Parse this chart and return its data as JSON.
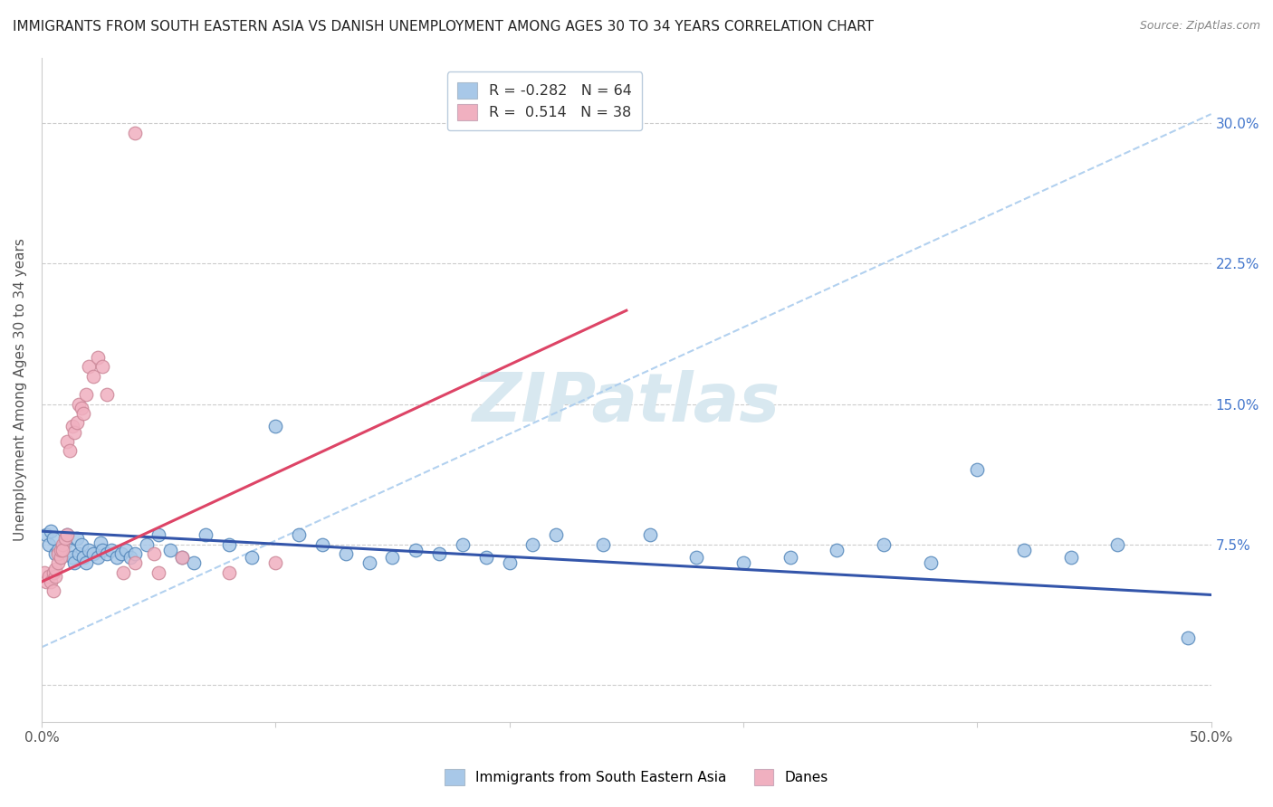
{
  "title": "IMMIGRANTS FROM SOUTH EASTERN ASIA VS DANISH UNEMPLOYMENT AMONG AGES 30 TO 34 YEARS CORRELATION CHART",
  "source": "Source: ZipAtlas.com",
  "ylabel": "Unemployment Among Ages 30 to 34 years",
  "xlim": [
    0.0,
    0.5
  ],
  "ylim": [
    -0.02,
    0.335
  ],
  "xticks": [
    0.0,
    0.1,
    0.2,
    0.3,
    0.4,
    0.5
  ],
  "xticklabels": [
    "0.0%",
    "",
    "",
    "",
    "",
    "50.0%"
  ],
  "yticks_right": [
    0.0,
    0.075,
    0.15,
    0.225,
    0.3
  ],
  "yticklabels_right": [
    "",
    "7.5%",
    "15.0%",
    "22.5%",
    "30.0%"
  ],
  "legend_r_blue": "-0.282",
  "legend_n_blue": "64",
  "legend_r_pink": "0.514",
  "legend_n_pink": "38",
  "blue_scatter_color": "#a8c8e8",
  "blue_edge_color": "#5588bb",
  "pink_scatter_color": "#f0b0c0",
  "pink_edge_color": "#cc8899",
  "blue_line_color": "#3355aa",
  "pink_line_color": "#dd4466",
  "dash_line_color": "#aaccee",
  "background_color": "#ffffff",
  "grid_color": "#cccccc",
  "watermark_color": "#d8e8f0",
  "blue_scatter_x": [
    0.002,
    0.003,
    0.004,
    0.005,
    0.006,
    0.007,
    0.008,
    0.009,
    0.01,
    0.011,
    0.012,
    0.013,
    0.014,
    0.015,
    0.016,
    0.017,
    0.018,
    0.019,
    0.02,
    0.022,
    0.024,
    0.025,
    0.026,
    0.028,
    0.03,
    0.032,
    0.034,
    0.036,
    0.038,
    0.04,
    0.045,
    0.05,
    0.055,
    0.06,
    0.065,
    0.07,
    0.08,
    0.09,
    0.1,
    0.11,
    0.12,
    0.13,
    0.14,
    0.15,
    0.16,
    0.17,
    0.18,
    0.19,
    0.2,
    0.21,
    0.22,
    0.24,
    0.26,
    0.28,
    0.3,
    0.32,
    0.34,
    0.36,
    0.38,
    0.4,
    0.42,
    0.44,
    0.46,
    0.49
  ],
  "blue_scatter_y": [
    0.08,
    0.075,
    0.082,
    0.078,
    0.07,
    0.072,
    0.068,
    0.074,
    0.076,
    0.08,
    0.072,
    0.068,
    0.065,
    0.078,
    0.07,
    0.075,
    0.068,
    0.065,
    0.072,
    0.07,
    0.068,
    0.076,
    0.072,
    0.07,
    0.072,
    0.068,
    0.07,
    0.072,
    0.068,
    0.07,
    0.075,
    0.08,
    0.072,
    0.068,
    0.065,
    0.08,
    0.075,
    0.068,
    0.138,
    0.08,
    0.075,
    0.07,
    0.065,
    0.068,
    0.072,
    0.07,
    0.075,
    0.068,
    0.065,
    0.075,
    0.08,
    0.075,
    0.08,
    0.068,
    0.065,
    0.068,
    0.072,
    0.075,
    0.065,
    0.115,
    0.072,
    0.068,
    0.075,
    0.025
  ],
  "pink_scatter_x": [
    0.001,
    0.002,
    0.003,
    0.004,
    0.005,
    0.005,
    0.006,
    0.006,
    0.007,
    0.007,
    0.008,
    0.008,
    0.009,
    0.009,
    0.01,
    0.011,
    0.011,
    0.012,
    0.013,
    0.014,
    0.015,
    0.016,
    0.017,
    0.018,
    0.019,
    0.02,
    0.022,
    0.024,
    0.026,
    0.028,
    0.035,
    0.04,
    0.048,
    0.05,
    0.06,
    0.08,
    0.1,
    0.04
  ],
  "pink_scatter_y": [
    0.06,
    0.055,
    0.058,
    0.055,
    0.06,
    0.05,
    0.058,
    0.062,
    0.065,
    0.07,
    0.068,
    0.072,
    0.075,
    0.072,
    0.078,
    0.08,
    0.13,
    0.125,
    0.138,
    0.135,
    0.14,
    0.15,
    0.148,
    0.145,
    0.155,
    0.17,
    0.165,
    0.175,
    0.17,
    0.155,
    0.06,
    0.065,
    0.07,
    0.06,
    0.068,
    0.06,
    0.065,
    0.295
  ],
  "pink_trend_x": [
    0.0,
    0.25
  ],
  "pink_trend_y": [
    0.055,
    0.2
  ],
  "blue_trend_x": [
    0.0,
    0.5
  ],
  "blue_trend_y": [
    0.082,
    0.048
  ],
  "dash_trend_x": [
    0.0,
    0.5
  ],
  "dash_trend_y": [
    0.02,
    0.305
  ]
}
